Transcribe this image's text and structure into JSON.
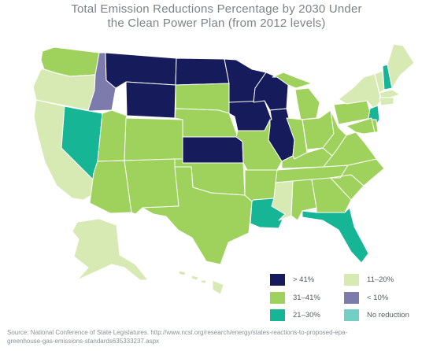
{
  "title_line1": "Total Emission Reductions Percentage by 2030 Under",
  "title_line2": "the Clean Power Plan (from 2012 levels)",
  "colors": {
    "gt41": "#151b5b",
    "c31_41": "#9ed25c",
    "c21_30": "#16b596",
    "c11_20": "#d8eab4",
    "lt10": "#7d7aac",
    "none": "#73cfc4",
    "border": "#ffffff"
  },
  "legend": [
    {
      "key": "gt41",
      "label": "> 41%"
    },
    {
      "key": "c11_20",
      "label": "11–20%"
    },
    {
      "key": "c31_41",
      "label": "31–41%"
    },
    {
      "key": "lt10",
      "label": "< 10%"
    },
    {
      "key": "c21_30",
      "label": "21–30%"
    },
    {
      "key": "none",
      "label": "No reduction"
    }
  ],
  "source_line1": "Source: National Conference of State Legislatures. http://www.ncsl.org/research/energy/states-reactions-to-proposed-epa-",
  "source_line2": "greenhouse-gas-emissions-standards635333237.aspx"
}
